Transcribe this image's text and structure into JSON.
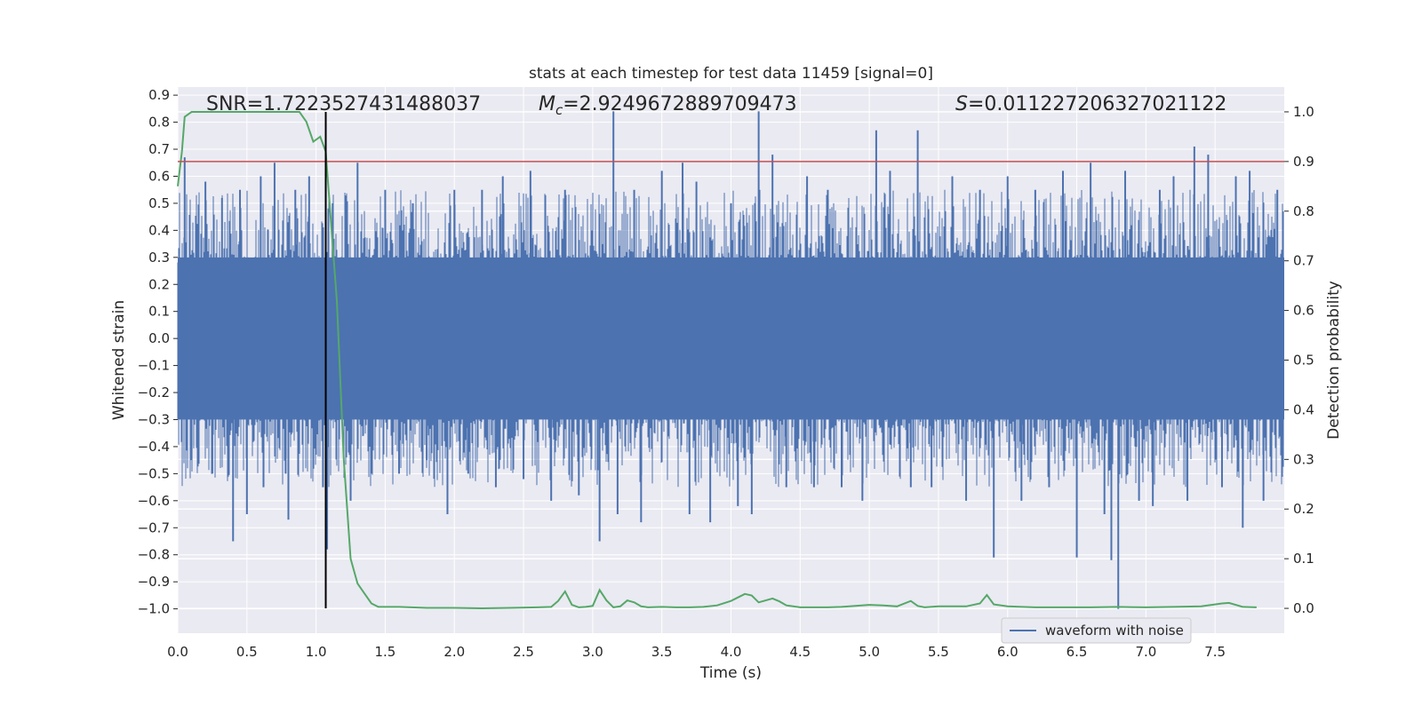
{
  "chart_data": {
    "type": "line",
    "title": "stats at each timestep for test data 11459 [signal=0]",
    "xlabel": "Time (s)",
    "ylabel": "Whitened strain",
    "y2label": "Detection probability",
    "xlim": [
      0.0,
      8.0
    ],
    "ylim": [
      -1.09,
      0.93
    ],
    "y2lim": [
      -0.05,
      1.05
    ],
    "xticks": [
      0.0,
      0.5,
      1.0,
      1.5,
      2.0,
      2.5,
      3.0,
      3.5,
      4.0,
      4.5,
      5.0,
      5.5,
      6.0,
      6.5,
      7.0,
      7.5
    ],
    "yticks": [
      0.9,
      0.8,
      0.7,
      0.6,
      0.5,
      0.4,
      0.3,
      0.2,
      0.1,
      0.0,
      -0.1,
      -0.2,
      -0.3,
      -0.4,
      -0.5,
      -0.6,
      -0.7,
      -0.8,
      -0.9,
      -1.0
    ],
    "y2ticks": [
      1.0,
      0.9,
      0.8,
      0.7,
      0.6,
      0.5,
      0.4,
      0.3,
      0.2,
      0.1,
      0.0
    ],
    "grid": true,
    "legend_position": "lower-right",
    "annotations": {
      "snr": "SNR=1.7223527431488037",
      "mc_symbol": "M",
      "mc_sub": "c",
      "mc_value": "=2.9249672889709473",
      "s_symbol": "S",
      "s_value": "=0.011227206327021122"
    },
    "threshold": {
      "value": 0.9,
      "axis": "right",
      "color": "#c44e52"
    },
    "marker_line": {
      "x": 1.07,
      "color": "#000000"
    },
    "series": [
      {
        "name": "waveform with noise",
        "color": "#4c72b0",
        "description_noise_band": [
          -0.3,
          0.3
        ],
        "spikes": [
          [
            0.05,
            0.67
          ],
          [
            0.1,
            -0.45
          ],
          [
            0.2,
            0.58
          ],
          [
            0.25,
            -0.5
          ],
          [
            0.32,
            0.52
          ],
          [
            0.4,
            -0.75
          ],
          [
            0.45,
            0.55
          ],
          [
            0.5,
            -0.65
          ],
          [
            0.6,
            0.6
          ],
          [
            0.62,
            -0.55
          ],
          [
            0.7,
            0.65
          ],
          [
            0.78,
            -0.5
          ],
          [
            0.8,
            -0.67
          ],
          [
            0.85,
            0.55
          ],
          [
            0.95,
            0.6
          ],
          [
            1.05,
            -0.55
          ],
          [
            1.07,
            0.7
          ],
          [
            1.08,
            -0.78
          ],
          [
            1.12,
            0.5
          ],
          [
            1.25,
            -0.6
          ],
          [
            1.3,
            0.65
          ],
          [
            1.4,
            -0.5
          ],
          [
            1.5,
            0.55
          ],
          [
            1.6,
            -0.5
          ],
          [
            1.7,
            0.5
          ],
          [
            1.8,
            -0.45
          ],
          [
            1.95,
            -0.65
          ],
          [
            2.0,
            0.55
          ],
          [
            2.1,
            -0.5
          ],
          [
            2.2,
            0.55
          ],
          [
            2.3,
            -0.55
          ],
          [
            2.35,
            0.6
          ],
          [
            2.5,
            -0.52
          ],
          [
            2.55,
            0.62
          ],
          [
            2.7,
            -0.6
          ],
          [
            2.8,
            0.55
          ],
          [
            2.9,
            -0.58
          ],
          [
            3.05,
            -0.75
          ],
          [
            3.15,
            0.84
          ],
          [
            3.18,
            -0.65
          ],
          [
            3.3,
            0.55
          ],
          [
            3.35,
            -0.68
          ],
          [
            3.5,
            0.62
          ],
          [
            3.65,
            0.65
          ],
          [
            3.7,
            -0.65
          ],
          [
            3.75,
            0.58
          ],
          [
            3.85,
            -0.68
          ],
          [
            4.0,
            0.5
          ],
          [
            4.05,
            -0.62
          ],
          [
            4.15,
            -0.65
          ],
          [
            4.2,
            0.84
          ],
          [
            4.3,
            0.68
          ],
          [
            4.4,
            -0.55
          ],
          [
            4.55,
            0.6
          ],
          [
            4.6,
            -0.55
          ],
          [
            4.7,
            0.55
          ],
          [
            4.8,
            -0.55
          ],
          [
            4.95,
            -0.6
          ],
          [
            5.05,
            0.77
          ],
          [
            5.15,
            0.62
          ],
          [
            5.3,
            -0.55
          ],
          [
            5.35,
            0.77
          ],
          [
            5.45,
            -0.55
          ],
          [
            5.6,
            0.6
          ],
          [
            5.7,
            -0.6
          ],
          [
            5.8,
            0.55
          ],
          [
            5.9,
            -0.81
          ],
          [
            6.0,
            0.6
          ],
          [
            6.1,
            -0.6
          ],
          [
            6.2,
            0.55
          ],
          [
            6.3,
            -0.55
          ],
          [
            6.4,
            0.62
          ],
          [
            6.5,
            -0.81
          ],
          [
            6.6,
            0.65
          ],
          [
            6.7,
            -0.65
          ],
          [
            6.75,
            -0.82
          ],
          [
            6.8,
            -1.0
          ],
          [
            6.85,
            0.62
          ],
          [
            6.95,
            -0.6
          ],
          [
            7.05,
            -0.62
          ],
          [
            7.1,
            0.55
          ],
          [
            7.2,
            0.6
          ],
          [
            7.3,
            -0.6
          ],
          [
            7.35,
            0.71
          ],
          [
            7.45,
            0.68
          ],
          [
            7.55,
            -0.55
          ],
          [
            7.65,
            0.6
          ],
          [
            7.7,
            -0.7
          ],
          [
            7.75,
            0.62
          ],
          [
            7.85,
            -0.6
          ],
          [
            7.95,
            0.55
          ]
        ]
      },
      {
        "name": "",
        "color": "#55a868",
        "axis": "right",
        "points": [
          [
            0.0,
            0.85
          ],
          [
            0.03,
            0.92
          ],
          [
            0.05,
            0.99
          ],
          [
            0.1,
            1.0
          ],
          [
            0.15,
            1.0
          ],
          [
            0.2,
            1.0
          ],
          [
            0.3,
            1.0
          ],
          [
            0.4,
            1.0
          ],
          [
            0.5,
            1.0
          ],
          [
            0.6,
            1.0
          ],
          [
            0.7,
            1.0
          ],
          [
            0.8,
            1.0
          ],
          [
            0.88,
            1.0
          ],
          [
            0.93,
            0.98
          ],
          [
            0.98,
            0.94
          ],
          [
            1.03,
            0.95
          ],
          [
            1.07,
            0.92
          ],
          [
            1.15,
            0.62
          ],
          [
            1.2,
            0.3
          ],
          [
            1.25,
            0.1
          ],
          [
            1.3,
            0.05
          ],
          [
            1.35,
            0.03
          ],
          [
            1.4,
            0.01
          ],
          [
            1.45,
            0.003
          ],
          [
            1.6,
            0.003
          ],
          [
            1.8,
            0.001
          ],
          [
            2.0,
            0.001
          ],
          [
            2.2,
            0.0
          ],
          [
            2.4,
            0.001
          ],
          [
            2.6,
            0.002
          ],
          [
            2.7,
            0.003
          ],
          [
            2.75,
            0.015
          ],
          [
            2.8,
            0.034
          ],
          [
            2.85,
            0.007
          ],
          [
            2.9,
            0.002
          ],
          [
            2.95,
            0.003
          ],
          [
            3.0,
            0.005
          ],
          [
            3.05,
            0.037
          ],
          [
            3.1,
            0.016
          ],
          [
            3.15,
            0.002
          ],
          [
            3.2,
            0.004
          ],
          [
            3.25,
            0.016
          ],
          [
            3.3,
            0.012
          ],
          [
            3.35,
            0.004
          ],
          [
            3.4,
            0.002
          ],
          [
            3.5,
            0.003
          ],
          [
            3.6,
            0.002
          ],
          [
            3.7,
            0.002
          ],
          [
            3.8,
            0.003
          ],
          [
            3.9,
            0.006
          ],
          [
            4.0,
            0.015
          ],
          [
            4.1,
            0.029
          ],
          [
            4.15,
            0.026
          ],
          [
            4.2,
            0.012
          ],
          [
            4.3,
            0.02
          ],
          [
            4.35,
            0.014
          ],
          [
            4.4,
            0.006
          ],
          [
            4.5,
            0.002
          ],
          [
            4.6,
            0.002
          ],
          [
            4.7,
            0.002
          ],
          [
            4.8,
            0.003
          ],
          [
            4.9,
            0.005
          ],
          [
            5.0,
            0.007
          ],
          [
            5.1,
            0.006
          ],
          [
            5.2,
            0.004
          ],
          [
            5.3,
            0.015
          ],
          [
            5.35,
            0.005
          ],
          [
            5.4,
            0.002
          ],
          [
            5.5,
            0.004
          ],
          [
            5.6,
            0.004
          ],
          [
            5.7,
            0.004
          ],
          [
            5.8,
            0.01
          ],
          [
            5.85,
            0.027
          ],
          [
            5.9,
            0.008
          ],
          [
            6.0,
            0.004
          ],
          [
            6.2,
            0.002
          ],
          [
            6.4,
            0.002
          ],
          [
            6.6,
            0.002
          ],
          [
            6.8,
            0.003
          ],
          [
            7.0,
            0.002
          ],
          [
            7.2,
            0.003
          ],
          [
            7.4,
            0.004
          ],
          [
            7.55,
            0.01
          ],
          [
            7.6,
            0.011
          ],
          [
            7.7,
            0.003
          ],
          [
            7.8,
            0.002
          ]
        ]
      }
    ]
  }
}
